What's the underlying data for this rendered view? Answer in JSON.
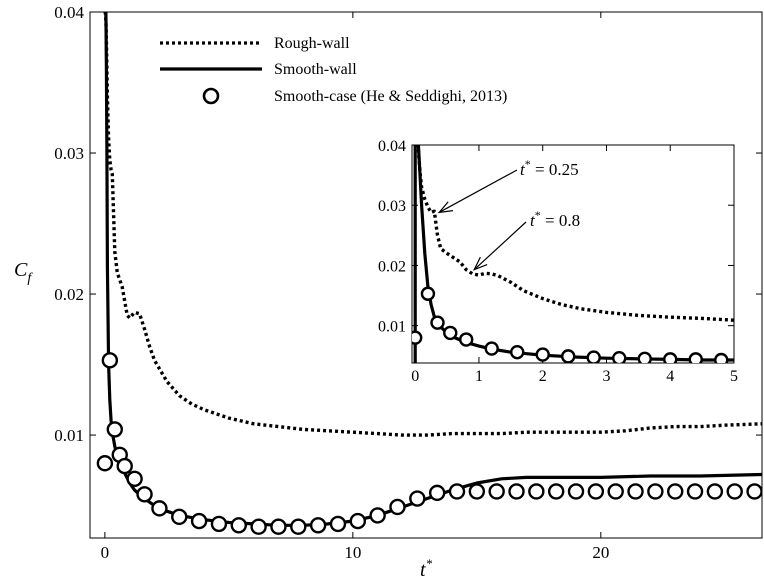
{
  "chart_data": [
    {
      "type": "line",
      "xlabel_main": "t",
      "xlabel_sup": "*",
      "ylabel_main": "C",
      "ylabel_sub": "f",
      "xlim": [
        -0.6,
        26.5
      ],
      "ylim": [
        0.0027,
        0.04
      ],
      "xticks": [
        {
          "v": 0,
          "label": "0"
        },
        {
          "v": 10,
          "label": "10"
        },
        {
          "v": 20,
          "label": "20"
        }
      ],
      "yticks": [
        {
          "v": 0.01,
          "label": "0.01"
        },
        {
          "v": 0.02,
          "label": "0.02"
        },
        {
          "v": 0.03,
          "label": "0.03"
        },
        {
          "v": 0.04,
          "label": "0.04"
        }
      ],
      "legend_position": "top-left",
      "series": [
        {
          "name": "Rough-wall",
          "style": "dotted",
          "x": [
            0.0,
            0.02,
            0.05,
            0.1,
            0.15,
            0.2,
            0.25,
            0.3,
            0.4,
            0.5,
            0.6,
            0.7,
            0.8,
            0.9,
            1.0,
            1.2,
            1.4,
            1.6,
            1.8,
            2.0,
            2.5,
            3.0,
            3.5,
            4.0,
            5.0,
            6.0,
            7.0,
            8.0,
            9.0,
            10.0,
            11.0,
            12.0,
            13.0,
            14.0,
            15.0,
            16.0,
            17.0,
            18.0,
            19.0,
            20.0,
            21.0,
            22.0,
            23.0,
            24.0,
            25.0,
            26.5
          ],
          "values": [
            0.04,
            0.04,
            0.039,
            0.034,
            0.031,
            0.0295,
            0.0288,
            0.0285,
            0.023,
            0.0215,
            0.021,
            0.0205,
            0.0195,
            0.0185,
            0.0183,
            0.0187,
            0.0186,
            0.0175,
            0.0163,
            0.0153,
            0.0138,
            0.0128,
            0.0122,
            0.0118,
            0.0112,
            0.0108,
            0.0106,
            0.0104,
            0.0103,
            0.0102,
            0.0101,
            0.01,
            0.01,
            0.0101,
            0.0101,
            0.0101,
            0.0102,
            0.0102,
            0.0102,
            0.0102,
            0.0103,
            0.0105,
            0.0106,
            0.0106,
            0.0107,
            0.0108
          ]
        },
        {
          "name": "Smooth-wall",
          "style": "solid",
          "x": [
            -0.05,
            0.0,
            0.02,
            0.04,
            0.06,
            0.08,
            0.1,
            0.15,
            0.2,
            0.25,
            0.3,
            0.4,
            0.5,
            0.6,
            0.8,
            1.0,
            1.2,
            1.5,
            2.0,
            2.5,
            3.0,
            4.0,
            5.0,
            6.0,
            7.0,
            8.0,
            9.0,
            10.0,
            11.0,
            12.0,
            13.0,
            14.0,
            15.0,
            16.0,
            17.0,
            18.0,
            20.0,
            22.0,
            24.0,
            26.5
          ],
          "values": [
            0.04,
            0.04,
            0.04,
            0.04,
            0.036,
            0.03,
            0.022,
            0.015,
            0.0125,
            0.011,
            0.0102,
            0.0092,
            0.0085,
            0.008,
            0.0073,
            0.0066,
            0.0061,
            0.0056,
            0.005,
            0.0046,
            0.0043,
            0.004,
            0.0038,
            0.0037,
            0.0036,
            0.0036,
            0.0037,
            0.0039,
            0.0043,
            0.0049,
            0.0055,
            0.0061,
            0.0066,
            0.0069,
            0.007,
            0.007,
            0.007,
            0.0071,
            0.0071,
            0.0072
          ]
        },
        {
          "name": "Smooth-case (He & Seddighi, 2013)",
          "style": "circles",
          "x": [
            0.0,
            0.2,
            0.4,
            0.6,
            0.8,
            1.2,
            1.6,
            2.2,
            3.0,
            3.8,
            4.6,
            5.4,
            6.2,
            7.0,
            7.8,
            8.6,
            9.4,
            10.2,
            11.0,
            11.8,
            12.6,
            13.4,
            14.2,
            15.0,
            15.8,
            16.6,
            17.4,
            18.2,
            19.0,
            19.8,
            20.6,
            21.4,
            22.2,
            23.0,
            23.8,
            24.6,
            25.4,
            26.2
          ],
          "values": [
            0.008,
            0.0153,
            0.0104,
            0.0086,
            0.0078,
            0.0069,
            0.0058,
            0.0048,
            0.0042,
            0.0039,
            0.0037,
            0.0036,
            0.0035,
            0.0035,
            0.0035,
            0.0036,
            0.0037,
            0.0039,
            0.0043,
            0.0049,
            0.0055,
            0.0059,
            0.006,
            0.006,
            0.006,
            0.006,
            0.006,
            0.006,
            0.006,
            0.006,
            0.006,
            0.006,
            0.006,
            0.006,
            0.006,
            0.006,
            0.006,
            0.006
          ]
        }
      ]
    },
    {
      "type": "line",
      "xlim": [
        -0.05,
        5.0
      ],
      "ylim": [
        0.0038,
        0.04
      ],
      "xticks": [
        {
          "v": 0,
          "label": "0"
        },
        {
          "v": 1,
          "label": "1"
        },
        {
          "v": 2,
          "label": "2"
        },
        {
          "v": 3,
          "label": "3"
        },
        {
          "v": 4,
          "label": "4"
        },
        {
          "v": 5,
          "label": "5"
        }
      ],
      "yticks": [
        {
          "v": 0.01,
          "label": "0.01"
        },
        {
          "v": 0.02,
          "label": "0.02"
        },
        {
          "v": 0.03,
          "label": "0.03"
        },
        {
          "v": 0.04,
          "label": "0.04"
        }
      ],
      "annotations": [
        {
          "text_main": "t",
          "text_sup": "*",
          "text_rest": " = 0.25",
          "x": 0.25,
          "y": 0.0288
        },
        {
          "text_main": "t",
          "text_sup": "*",
          "text_rest": " = 0.8",
          "x": 0.8,
          "y": 0.0193
        }
      ],
      "series": [
        {
          "name": "Rough-wall",
          "style": "dotted",
          "x": [
            0.0,
            0.02,
            0.05,
            0.08,
            0.1,
            0.15,
            0.2,
            0.25,
            0.3,
            0.35,
            0.4,
            0.5,
            0.6,
            0.7,
            0.8,
            0.9,
            1.0,
            1.1,
            1.2,
            1.3,
            1.5,
            1.7,
            2.0,
            2.3,
            2.6,
            3.0,
            3.5,
            4.0,
            4.5,
            5.0
          ],
          "values": [
            0.04,
            0.04,
            0.039,
            0.035,
            0.033,
            0.031,
            0.0297,
            0.0288,
            0.029,
            0.025,
            0.0228,
            0.022,
            0.0213,
            0.0206,
            0.0193,
            0.0186,
            0.0184,
            0.0187,
            0.0186,
            0.0183,
            0.0172,
            0.0158,
            0.0145,
            0.0135,
            0.0128,
            0.0122,
            0.0117,
            0.0114,
            0.0112,
            0.0109
          ]
        },
        {
          "name": "Smooth-wall",
          "style": "solid",
          "x": [
            0.0,
            0.0,
            0.05,
            0.07,
            0.1,
            0.15,
            0.2,
            0.25,
            0.3,
            0.4,
            0.5,
            0.6,
            0.8,
            1.0,
            1.2,
            1.5,
            2.0,
            2.5,
            3.0,
            3.5,
            4.0,
            4.5,
            5.0
          ],
          "values": [
            0.0038,
            0.04,
            0.04,
            0.036,
            0.03,
            0.022,
            0.0165,
            0.0135,
            0.0115,
            0.0098,
            0.0088,
            0.0081,
            0.0072,
            0.0066,
            0.0061,
            0.0056,
            0.0051,
            0.0048,
            0.0046,
            0.0045,
            0.0044,
            0.0043,
            0.0043
          ]
        },
        {
          "name": "Smooth-case (He & Seddighi, 2013)",
          "style": "circles",
          "x": [
            0.0,
            0.2,
            0.35,
            0.55,
            0.8,
            1.2,
            1.6,
            2.0,
            2.4,
            2.8,
            3.2,
            3.6,
            4.0,
            4.4,
            4.8
          ],
          "values": [
            0.008,
            0.0153,
            0.0105,
            0.0088,
            0.0077,
            0.0062,
            0.0056,
            0.0052,
            0.0049,
            0.0047,
            0.0046,
            0.0045,
            0.0044,
            0.0044,
            0.0043
          ]
        }
      ]
    }
  ]
}
